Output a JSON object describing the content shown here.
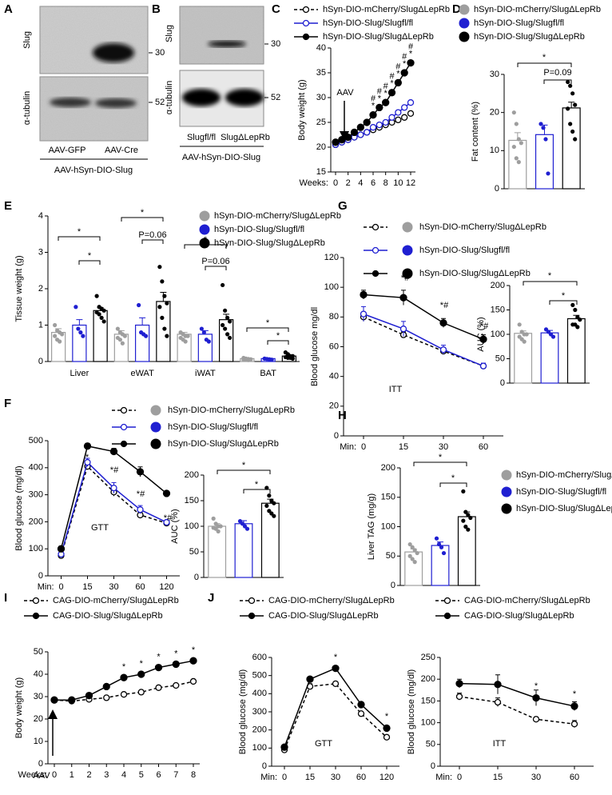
{
  "panel_labels": [
    "A",
    "B",
    "C",
    "D",
    "E",
    "F",
    "G",
    "H",
    "I",
    "J"
  ],
  "blots": [
    {
      "rows": [
        "Slug",
        "α-tubulin"
      ],
      "markers": [
        "30",
        "52"
      ],
      "lanes": [
        "AAV-GFP",
        "AAV-Cre"
      ],
      "construct": "AAV-hSyn-DIO-Slug"
    },
    {
      "rows": [
        "Slug",
        "α-tubulin"
      ],
      "markers": [
        "30",
        "52"
      ],
      "lanes": [
        "Slugfl/fl",
        "SlugΔLepRb"
      ],
      "construct": "AAV-hSyn-DIO-Slug"
    }
  ],
  "chart_data": [
    {
      "type": "line",
      "x": [
        0,
        1,
        2,
        3,
        4,
        5,
        6,
        7,
        8,
        9,
        10,
        11,
        12
      ],
      "xlim": [
        0,
        12
      ],
      "xticks": [
        0,
        2,
        4,
        6,
        8,
        10,
        12
      ],
      "x_label": "Weeks:",
      "y_label": "Body weight (g)",
      "ylim": [
        15,
        40
      ],
      "yticks": [
        15,
        20,
        25,
        30,
        35,
        40
      ],
      "series": [
        {
          "name": "hSyn-DIO-mCherry/SlugΔLepRb",
          "color": "#000000",
          "line_style": "dashed",
          "marker": "open",
          "values": [
            20.5,
            21,
            21.5,
            22,
            22.5,
            23,
            23.5,
            24,
            24.5,
            25,
            25.5,
            26,
            26.8
          ]
        },
        {
          "name": "hSyn-DIO-Slug/Slugfl/fl",
          "color": "#1f1fd1",
          "line_style": "solid",
          "marker": "open",
          "values": [
            20.5,
            21,
            21.5,
            22,
            22.5,
            23,
            24,
            24.5,
            25,
            26,
            27,
            28,
            29
          ]
        },
        {
          "name": "hSyn-DIO-Slug/SlugΔLepRb",
          "color": "#000000",
          "line_style": "solid",
          "marker": "filled",
          "values": [
            21,
            21.5,
            22,
            23,
            24,
            25,
            26.5,
            28,
            29,
            31,
            33,
            35,
            37
          ]
        }
      ],
      "annotations": [
        "AAV",
        "*",
        "#",
        "*",
        "#",
        "*",
        "#",
        "*",
        "#",
        "*",
        "#",
        "*",
        "#",
        "*",
        "#"
      ]
    },
    {
      "type": "bar",
      "y_label": "Fat content (%)",
      "ylim": [
        0,
        30
      ],
      "yticks": [
        0,
        10,
        20,
        30
      ],
      "series": [
        {
          "name": "hSyn-DIO-mCherry/SlugΔLepRb",
          "color": "#9e9e9e",
          "values": [
            12.7
          ],
          "errors": [
            2.0
          ],
          "points": [
            [
              20,
              17,
              13,
              12,
              11,
              8,
              7
            ]
          ]
        },
        {
          "name": "hSyn-DIO-Slug/Slugfl/fl",
          "color": "#1f1fd1",
          "values": [
            14.2
          ],
          "errors": [
            2.5
          ],
          "points": [
            [
              17,
              16,
              13,
              4
            ]
          ]
        },
        {
          "name": "hSyn-DIO-Slug/SlugΔLepRb",
          "color": "#000000",
          "values": [
            21.2
          ],
          "errors": [
            1.5
          ],
          "points": [
            [
              28,
              27,
              25,
              22,
              21,
              17,
              15,
              13
            ]
          ]
        }
      ],
      "annotations": [
        "*",
        "P=0.09"
      ]
    },
    {
      "type": "bar",
      "categories": [
        "Liver",
        "eWAT",
        "iWAT",
        "BAT"
      ],
      "y_label": "Tissue weight (g)",
      "ylim": [
        0,
        4
      ],
      "yticks": [
        0,
        1,
        2,
        3,
        4
      ],
      "series": [
        {
          "name": "hSyn-DIO-mCherry/SlugΔLepRb",
          "color": "#9e9e9e",
          "values": [
            0.8,
            0.75,
            0.75,
            0.08
          ],
          "errors": [
            0.1,
            0.1,
            0.05,
            0.01
          ],
          "points": [
            [
              1.0,
              0.85,
              0.8,
              0.75,
              0.7,
              0.6,
              0.55
            ],
            [
              0.9,
              0.8,
              0.75,
              0.7,
              0.65,
              0.6,
              0.5
            ],
            [
              0.8,
              0.75,
              0.7,
              0.7,
              0.65,
              0.6,
              0.55
            ],
            [
              0.1,
              0.08,
              0.07,
              0.06,
              0.05,
              0.05,
              0.04
            ]
          ]
        },
        {
          "name": "hSyn-DIO-Slug/Slugfl/fl",
          "color": "#1f1fd1",
          "values": [
            1.0,
            1.0,
            0.75,
            0.08
          ],
          "errors": [
            0.15,
            0.2,
            0.1,
            0.01
          ],
          "points": [
            [
              1.5,
              0.9,
              0.8,
              0.7
            ],
            [
              1.55,
              0.8,
              0.75,
              0.7
            ],
            [
              0.9,
              0.8,
              0.6,
              0.55
            ],
            [
              0.08,
              0.07,
              0.06,
              0.05
            ]
          ]
        },
        {
          "name": "hSyn-DIO-Slug/SlugΔLepRb",
          "color": "#000000",
          "values": [
            1.4,
            1.65,
            1.15,
            0.15
          ],
          "errors": [
            0.08,
            0.25,
            0.15,
            0.02
          ],
          "points": [
            [
              1.8,
              1.5,
              1.45,
              1.4,
              1.35,
              1.3,
              1.2,
              1.1
            ],
            [
              2.6,
              2.2,
              1.8,
              1.6,
              1.5,
              1.2,
              0.9,
              0.7
            ],
            [
              2.1,
              1.4,
              1.2,
              1.1,
              1.0,
              0.9,
              0.75,
              0.65
            ],
            [
              0.25,
              0.2,
              0.15,
              0.15,
              0.12,
              0.1,
              0.1,
              0.08
            ]
          ]
        }
      ],
      "annotations": [
        "*",
        "*",
        "*",
        "P=0.06",
        "*",
        "P=0.06",
        "*",
        "*"
      ]
    },
    {
      "type": "line",
      "categories": [
        "0",
        "15",
        "30",
        "60"
      ],
      "x_label": "Min:",
      "y_label": "Blood glucose mg/dl",
      "ylim": [
        0,
        120
      ],
      "yticks": [
        0,
        20,
        40,
        60,
        80,
        100,
        120
      ],
      "series": [
        {
          "name": "hSyn-DIO-mCherry/SlugΔLepRb",
          "color": "#000000",
          "dot_color": "#9e9e9e",
          "line_style": "dashed",
          "marker": "open",
          "values": [
            80,
            68,
            57,
            47
          ],
          "errors": [
            3,
            2,
            2,
            2
          ]
        },
        {
          "name": "hSyn-DIO-Slug/Slugfl/fl",
          "color": "#1f1fd1",
          "dot_color": "#1f1fd1",
          "line_style": "solid",
          "marker": "open",
          "values": [
            82,
            72,
            58,
            47
          ],
          "errors": [
            5,
            5,
            3,
            2
          ]
        },
        {
          "name": "hSyn-DIO-Slug/SlugΔLepRb",
          "color": "#000000",
          "dot_color": "#000000",
          "line_style": "solid",
          "marker": "filled",
          "values": [
            95,
            93,
            76,
            65
          ],
          "errors": [
            3,
            5,
            3,
            3
          ]
        }
      ],
      "annotations": [
        "ITT",
        "*#",
        "*#",
        "*#"
      ]
    },
    {
      "type": "bar",
      "y_label": "AUC (%)",
      "ylim": [
        0,
        200
      ],
      "yticks": [
        0,
        50,
        100,
        150,
        200
      ],
      "series": [
        {
          "color": "#9e9e9e",
          "values": [
            102
          ],
          "errors": [
            5
          ],
          "points": [
            [
              120,
              105,
              100,
              100,
              95,
              90,
              85
            ]
          ]
        },
        {
          "color": "#1f1fd1",
          "values": [
            103
          ],
          "errors": [
            5
          ],
          "points": [
            [
              110,
              105,
              100,
              95
            ]
          ]
        },
        {
          "color": "#000000",
          "values": [
            132
          ],
          "errors": [
            7
          ],
          "points": [
            [
              160,
              150,
              135,
              130,
              120,
              120,
              115
            ]
          ]
        }
      ],
      "annotations": [
        "*",
        "*"
      ]
    },
    {
      "type": "line",
      "categories": [
        "0",
        "15",
        "30",
        "60",
        "120"
      ],
      "x_label": "Min:",
      "y_label": "Blood glucose (mg/dl)",
      "ylim": [
        0,
        500
      ],
      "yticks": [
        0,
        100,
        200,
        300,
        400,
        500
      ],
      "series": [
        {
          "name": "hSyn-DIO-mCherry/SlugΔLepRb",
          "color": "#000000",
          "dot_color": "#9e9e9e",
          "line_style": "dashed",
          "marker": "open",
          "values": [
            75,
            405,
            310,
            225,
            195
          ],
          "errors": [
            8,
            10,
            15,
            10,
            8
          ]
        },
        {
          "name": "hSyn-DIO-Slug/Slugfl/fl",
          "color": "#1f1fd1",
          "dot_color": "#1f1fd1",
          "line_style": "solid",
          "marker": "open",
          "values": [
            80,
            420,
            325,
            245,
            198
          ],
          "errors": [
            8,
            15,
            20,
            15,
            8
          ]
        },
        {
          "name": "hSyn-DIO-Slug/SlugΔLepRb",
          "color": "#000000",
          "dot_color": "#000000",
          "line_style": "solid",
          "marker": "filled",
          "values": [
            100,
            480,
            460,
            385,
            305
          ],
          "errors": [
            10,
            10,
            12,
            18,
            8
          ]
        }
      ],
      "annotations": [
        "GTT",
        "*",
        "*#",
        "*#",
        "*#"
      ]
    },
    {
      "type": "bar",
      "y_label": "AUC (%)",
      "ylim": [
        0,
        200
      ],
      "yticks": [
        0,
        50,
        100,
        150,
        200
      ],
      "series": [
        {
          "color": "#9e9e9e",
          "values": [
            100
          ],
          "errors": [
            5
          ],
          "points": [
            [
              115,
              105,
              100,
              100,
              97,
              95,
              90
            ]
          ]
        },
        {
          "color": "#1f1fd1",
          "values": [
            105
          ],
          "errors": [
            6
          ],
          "points": [
            [
              110,
              105,
              100,
              95
            ]
          ]
        },
        {
          "color": "#000000",
          "values": [
            145
          ],
          "errors": [
            8
          ],
          "points": [
            [
              175,
              160,
              150,
              145,
              140,
              130,
              125,
              120
            ]
          ]
        }
      ],
      "annotations": [
        "*",
        "*"
      ]
    },
    {
      "type": "bar",
      "y_label": "Liver TAG (mg/g)",
      "ylim": [
        0,
        200
      ],
      "yticks": [
        0,
        50,
        100,
        150,
        200
      ],
      "series": [
        {
          "name": "hSyn-DIO-mCherry/SlugΔLepRb",
          "color": "#9e9e9e",
          "values": [
            57
          ],
          "errors": [
            5
          ],
          "points": [
            [
              70,
              65,
              60,
              55,
              50,
              45,
              40
            ]
          ]
        },
        {
          "name": "hSyn-DIO-Slug/Slugfl/fl",
          "color": "#1f1fd1",
          "values": [
            68
          ],
          "errors": [
            6
          ],
          "points": [
            [
              80,
              70,
              65,
              55
            ]
          ]
        },
        {
          "name": "hSyn-DIO-Slug/SlugΔLepRb",
          "color": "#000000",
          "values": [
            117
          ],
          "errors": [
            8
          ],
          "points": [
            [
              160,
              125,
              120,
              115,
              110,
              100,
              95
            ]
          ]
        }
      ],
      "annotations": [
        "*",
        "*"
      ]
    },
    {
      "type": "line",
      "x": [
        0,
        1,
        2,
        3,
        4,
        5,
        6,
        7,
        8
      ],
      "xlim": [
        0,
        8
      ],
      "xticks": [
        0,
        1,
        2,
        3,
        4,
        5,
        6,
        7,
        8
      ],
      "x_label": "Weeks:",
      "y_label": "Body weight (g)",
      "ylim": [
        0,
        50
      ],
      "yticks": [
        0,
        10,
        20,
        30,
        40,
        50
      ],
      "series": [
        {
          "name": "CAG-DIO-mCherry/SlugΔLepRb",
          "color": "#000000",
          "line_style": "dashed",
          "marker": "open",
          "values": [
            28.5,
            28,
            28.8,
            29.5,
            31,
            32,
            34,
            35,
            36.8
          ]
        },
        {
          "name": "CAG-DIO-Slug/SlugΔLepRb",
          "color": "#000000",
          "line_style": "solid",
          "marker": "filled",
          "values": [
            28.5,
            28.5,
            30.5,
            34.5,
            38.5,
            40,
            43,
            44.5,
            46
          ]
        }
      ],
      "annotations": [
        "AAV",
        "*",
        "*",
        "*",
        "*",
        "*"
      ]
    },
    {
      "type": "line",
      "categories": [
        "0",
        "15",
        "30",
        "60",
        "120"
      ],
      "x_label": "Min:",
      "y_label": "Blood glucose (mg/dl)",
      "ylim": [
        0,
        600
      ],
      "yticks": [
        0,
        100,
        200,
        300,
        400,
        500,
        600
      ],
      "series": [
        {
          "name": "CAG-DIO-mCherry/SlugΔLepRb",
          "color": "#000000",
          "line_style": "dashed",
          "marker": "open",
          "values": [
            90,
            440,
            455,
            290,
            160
          ],
          "errors": [
            8,
            15,
            10,
            10,
            8
          ]
        },
        {
          "name": "CAG-DIO-Slug/SlugΔLepRb",
          "color": "#000000",
          "line_style": "solid",
          "marker": "filled",
          "values": [
            105,
            480,
            540,
            340,
            210
          ],
          "errors": [
            8,
            10,
            8,
            10,
            10
          ]
        }
      ],
      "annotations": [
        "GTT",
        "*",
        "*"
      ]
    },
    {
      "type": "line",
      "categories": [
        "0",
        "15",
        "30",
        "60"
      ],
      "x_label": "Min:",
      "y_label": "Blood glucose (mg/dl)",
      "ylim": [
        0,
        250
      ],
      "yticks": [
        0,
        50,
        100,
        150,
        200,
        250
      ],
      "series": [
        {
          "name": "CAG-DIO-mCherry/SlugΔLepRb",
          "color": "#000000",
          "line_style": "dashed",
          "marker": "open",
          "values": [
            160,
            147,
            108,
            97
          ],
          "errors": [
            8,
            10,
            5,
            8
          ]
        },
        {
          "name": "CAG-DIO-Slug/SlugΔLepRb",
          "color": "#000000",
          "line_style": "solid",
          "marker": "filled",
          "values": [
            190,
            188,
            157,
            138
          ],
          "errors": [
            10,
            22,
            18,
            10
          ]
        }
      ],
      "annotations": [
        "ITT",
        "*",
        "*"
      ]
    }
  ]
}
